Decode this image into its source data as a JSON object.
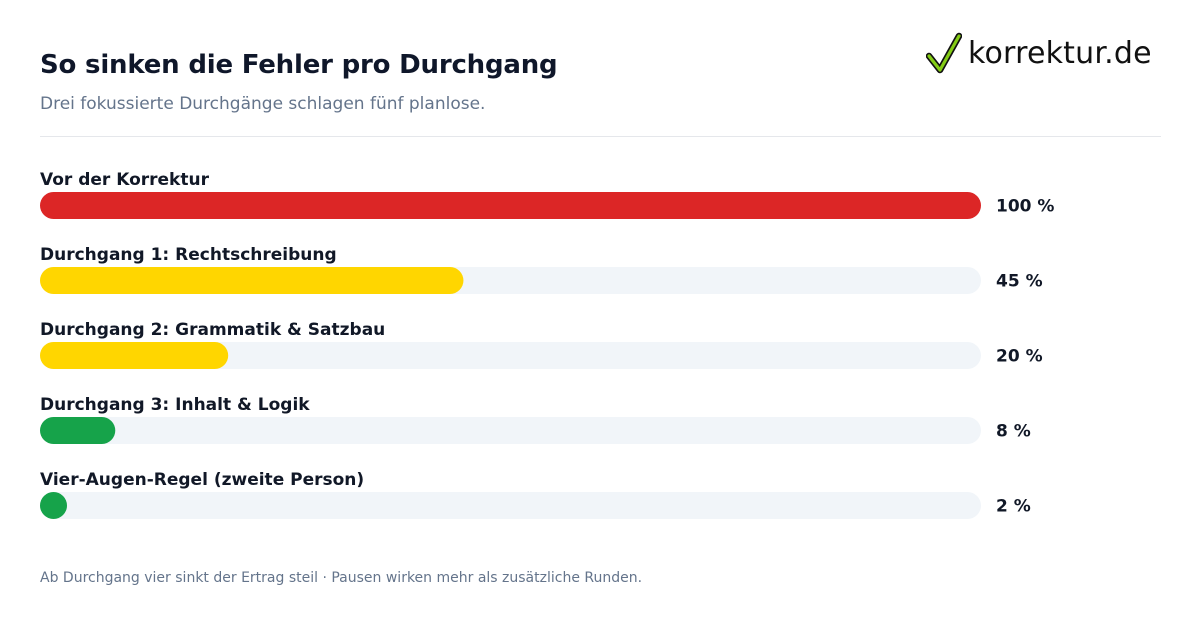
{
  "header": {
    "title": "So sinken die Fehler pro Durchgang",
    "subtitle": "Drei fokussierte Durchgänge schlagen fünf planlose."
  },
  "brand": {
    "name": "korrektur.de",
    "logo_icon": "checkmark-icon",
    "check_color": "#84cc16"
  },
  "chart_data": {
    "type": "bar",
    "orientation": "horizontal",
    "categories": [
      "Vor der Korrektur",
      "Durchgang 1: Rechtschreibung",
      "Durchgang 2: Grammatik & Satzbau",
      "Durchgang 3: Inhalt & Logik",
      "Vier-Augen-Regel (zweite Person)"
    ],
    "values": [
      100,
      45,
      20,
      8,
      2
    ],
    "value_labels": [
      "100 %",
      "45 %",
      "20 %",
      "8 %",
      "2 %"
    ],
    "bar_colors": [
      "#dc2626",
      "#ffd600",
      "#ffd600",
      "#16a34a",
      "#16a34a"
    ],
    "track_color": "#f1f5f9",
    "xlim": [
      0,
      100
    ],
    "unit": "%",
    "grid": false
  },
  "footer": {
    "note": "Ab Durchgang vier sinkt der Ertrag steil · Pausen wirken mehr als zusätzliche Runden."
  }
}
